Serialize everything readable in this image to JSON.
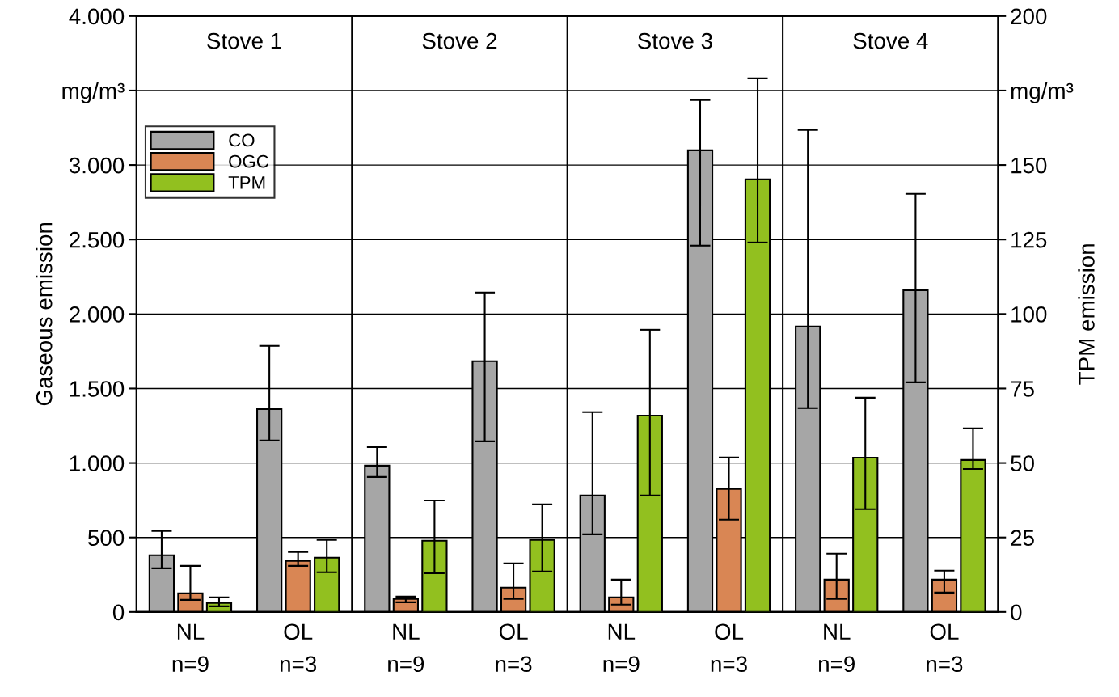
{
  "chart_data": {
    "type": "bar",
    "categories": [
      "NL\nn=9",
      "OL\nn=3",
      "NL\nn=9",
      "OL\nn=3",
      "NL\nn=9",
      "OL\nn=3",
      "NL\nn=9",
      "OL\nn=3"
    ],
    "series": [
      {
        "name": "CO",
        "color": "#a6a6a6",
        "values": [
          380,
          1362,
          982,
          1683,
          782,
          3099,
          1916,
          2160
        ],
        "errors": [
          [
            293,
            543
          ],
          [
            1151,
            1786
          ],
          [
            906,
            1107
          ],
          [
            1145,
            2144
          ],
          [
            521,
            1341
          ],
          [
            2459,
            3436
          ],
          [
            1368,
            3235
          ],
          [
            1541,
            2806
          ]
        ]
      },
      {
        "name": "OGC",
        "color": "#d98654",
        "values": [
          125,
          342,
          87,
          163,
          98,
          825,
          217,
          217
        ],
        "errors": [
          [
            81,
            309
          ],
          [
            309,
            402
          ],
          [
            65,
            103
          ],
          [
            87,
            326
          ],
          [
            49,
            217
          ],
          [
            619,
            1037
          ],
          [
            87,
            391
          ],
          [
            130,
            277
          ]
        ]
      },
      {
        "name": "TPM",
        "color": "#92c01f",
        "axis": "y2",
        "values": [
          3.0,
          18.2,
          23.9,
          24.2,
          65.9,
          145.2,
          51.8,
          51.0
        ],
        "errors": [
          [
            1.9,
            4.9
          ],
          [
            13.3,
            24.2
          ],
          [
            13.0,
            37.4
          ],
          [
            13.6,
            36.1
          ],
          [
            39.1,
            94.7
          ],
          [
            124.0,
            179.1
          ],
          [
            34.5,
            71.9
          ],
          [
            48.0,
            61.6
          ]
        ]
      }
    ],
    "ylabel": "Gaseous emission",
    "y2label": "TPM emission",
    "ylim": [
      0,
      4000
    ],
    "yticks": [
      0,
      {
        "value": 500,
        "label": "500"
      },
      {
        "value": 1000,
        "label": "1.000"
      },
      {
        "value": 1500,
        "label": "1.500"
      },
      {
        "value": 2000,
        "label": "2.000"
      },
      {
        "value": 2500,
        "label": "2.500"
      },
      {
        "value": 3000,
        "label": "3.000"
      },
      {
        "value": 3500,
        "label": "mg/m³"
      },
      {
        "value": 4000,
        "label": "4.000"
      }
    ],
    "y2lim": [
      0,
      200
    ],
    "y2ticks": [
      0,
      25,
      50,
      75,
      100,
      125,
      150,
      {
        "value": 175,
        "label": "mg/m³"
      },
      200
    ],
    "annotations": [
      "Stove 1",
      "Stove 2",
      "Stove 3",
      "Stove 4"
    ],
    "grid": "y",
    "legend": "top left"
  }
}
